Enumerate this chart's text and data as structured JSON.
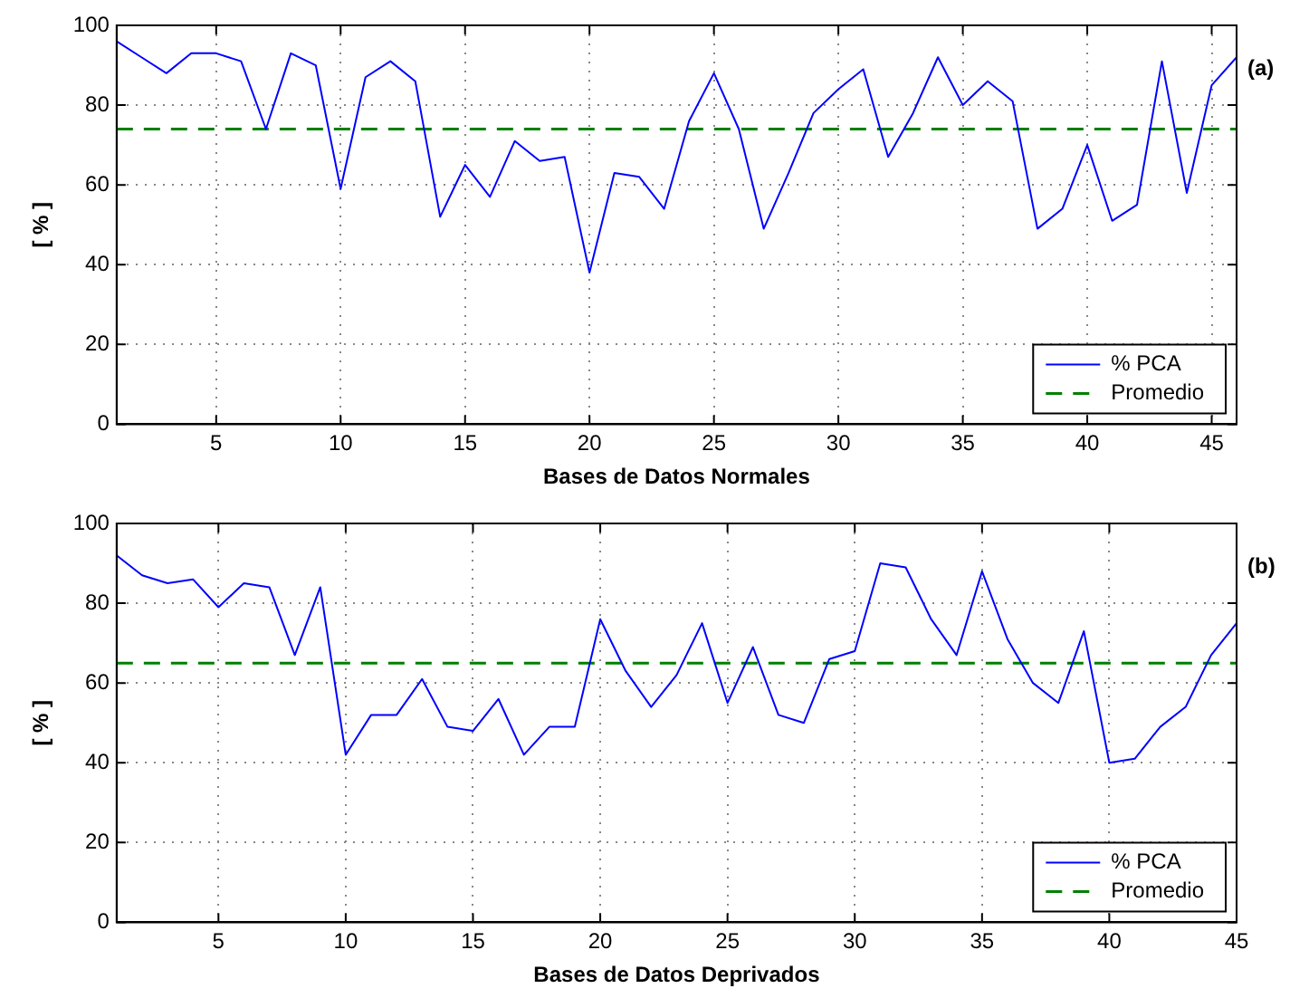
{
  "chart_data": [
    {
      "type": "line",
      "title": "(a)",
      "xlabel": "Bases de Datos Normales",
      "ylabel": "[ % ]",
      "x": [
        1,
        2,
        3,
        4,
        5,
        6,
        7,
        8,
        9,
        10,
        11,
        12,
        13,
        14,
        15,
        16,
        17,
        18,
        19,
        20,
        21,
        22,
        23,
        24,
        25,
        26,
        27,
        28,
        29,
        30,
        31,
        32,
        33,
        34,
        35,
        36,
        37,
        38,
        39,
        40,
        41,
        42,
        43,
        44,
        45,
        46
      ],
      "series": [
        {
          "name": "% PCA",
          "color": "#0000ff",
          "values": [
            96,
            92,
            88,
            93,
            93,
            91,
            74,
            93,
            90,
            59,
            87,
            91,
            86,
            52,
            65,
            57,
            71,
            66,
            67,
            38,
            63,
            62,
            54,
            76,
            88,
            74,
            49,
            63,
            78,
            84,
            89,
            67,
            78,
            92,
            80,
            86,
            81,
            49,
            54,
            70,
            51,
            55,
            91,
            58,
            85,
            92
          ]
        }
      ],
      "ref_lines": [
        {
          "axis": "y",
          "value": 74,
          "label": "Promedio",
          "color": "#008000",
          "line_style": "dashed"
        }
      ],
      "xlim": [
        1,
        46
      ],
      "xticks": [
        5,
        10,
        15,
        20,
        25,
        30,
        35,
        40,
        45
      ],
      "ylim": [
        0,
        100
      ],
      "yticks": [
        0,
        20,
        40,
        60,
        80,
        100
      ],
      "grid": true,
      "legend": "bottom right",
      "line_style": "solid",
      "marker": "none"
    },
    {
      "type": "line",
      "title": "(b)",
      "xlabel": "Bases de Datos Deprivados",
      "ylabel": "[ % ]",
      "x": [
        1,
        2,
        3,
        4,
        5,
        6,
        7,
        8,
        9,
        10,
        11,
        12,
        13,
        14,
        15,
        16,
        17,
        18,
        19,
        20,
        21,
        22,
        23,
        24,
        25,
        26,
        27,
        28,
        29,
        30,
        31,
        32,
        33,
        34,
        35,
        36,
        37,
        38,
        39,
        40,
        41,
        42,
        43,
        44,
        45
      ],
      "series": [
        {
          "name": "% PCA",
          "color": "#0000ff",
          "values": [
            92,
            87,
            85,
            86,
            79,
            85,
            84,
            67,
            84,
            42,
            52,
            52,
            61,
            49,
            48,
            56,
            42,
            49,
            49,
            76,
            63,
            54,
            62,
            75,
            55,
            69,
            52,
            50,
            66,
            68,
            90,
            89,
            76,
            67,
            88,
            71,
            60,
            55,
            73,
            40,
            41,
            49,
            54,
            67,
            75
          ]
        }
      ],
      "ref_lines": [
        {
          "axis": "y",
          "value": 65,
          "label": "Promedio",
          "color": "#008000",
          "line_style": "dashed"
        }
      ],
      "xlim": [
        1,
        45
      ],
      "xticks": [
        5,
        10,
        15,
        20,
        25,
        30,
        35,
        40,
        45
      ],
      "ylim": [
        0,
        100
      ],
      "yticks": [
        0,
        20,
        40,
        60,
        80,
        100
      ],
      "grid": true,
      "legend": "bottom right",
      "line_style": "solid",
      "marker": "none"
    }
  ]
}
